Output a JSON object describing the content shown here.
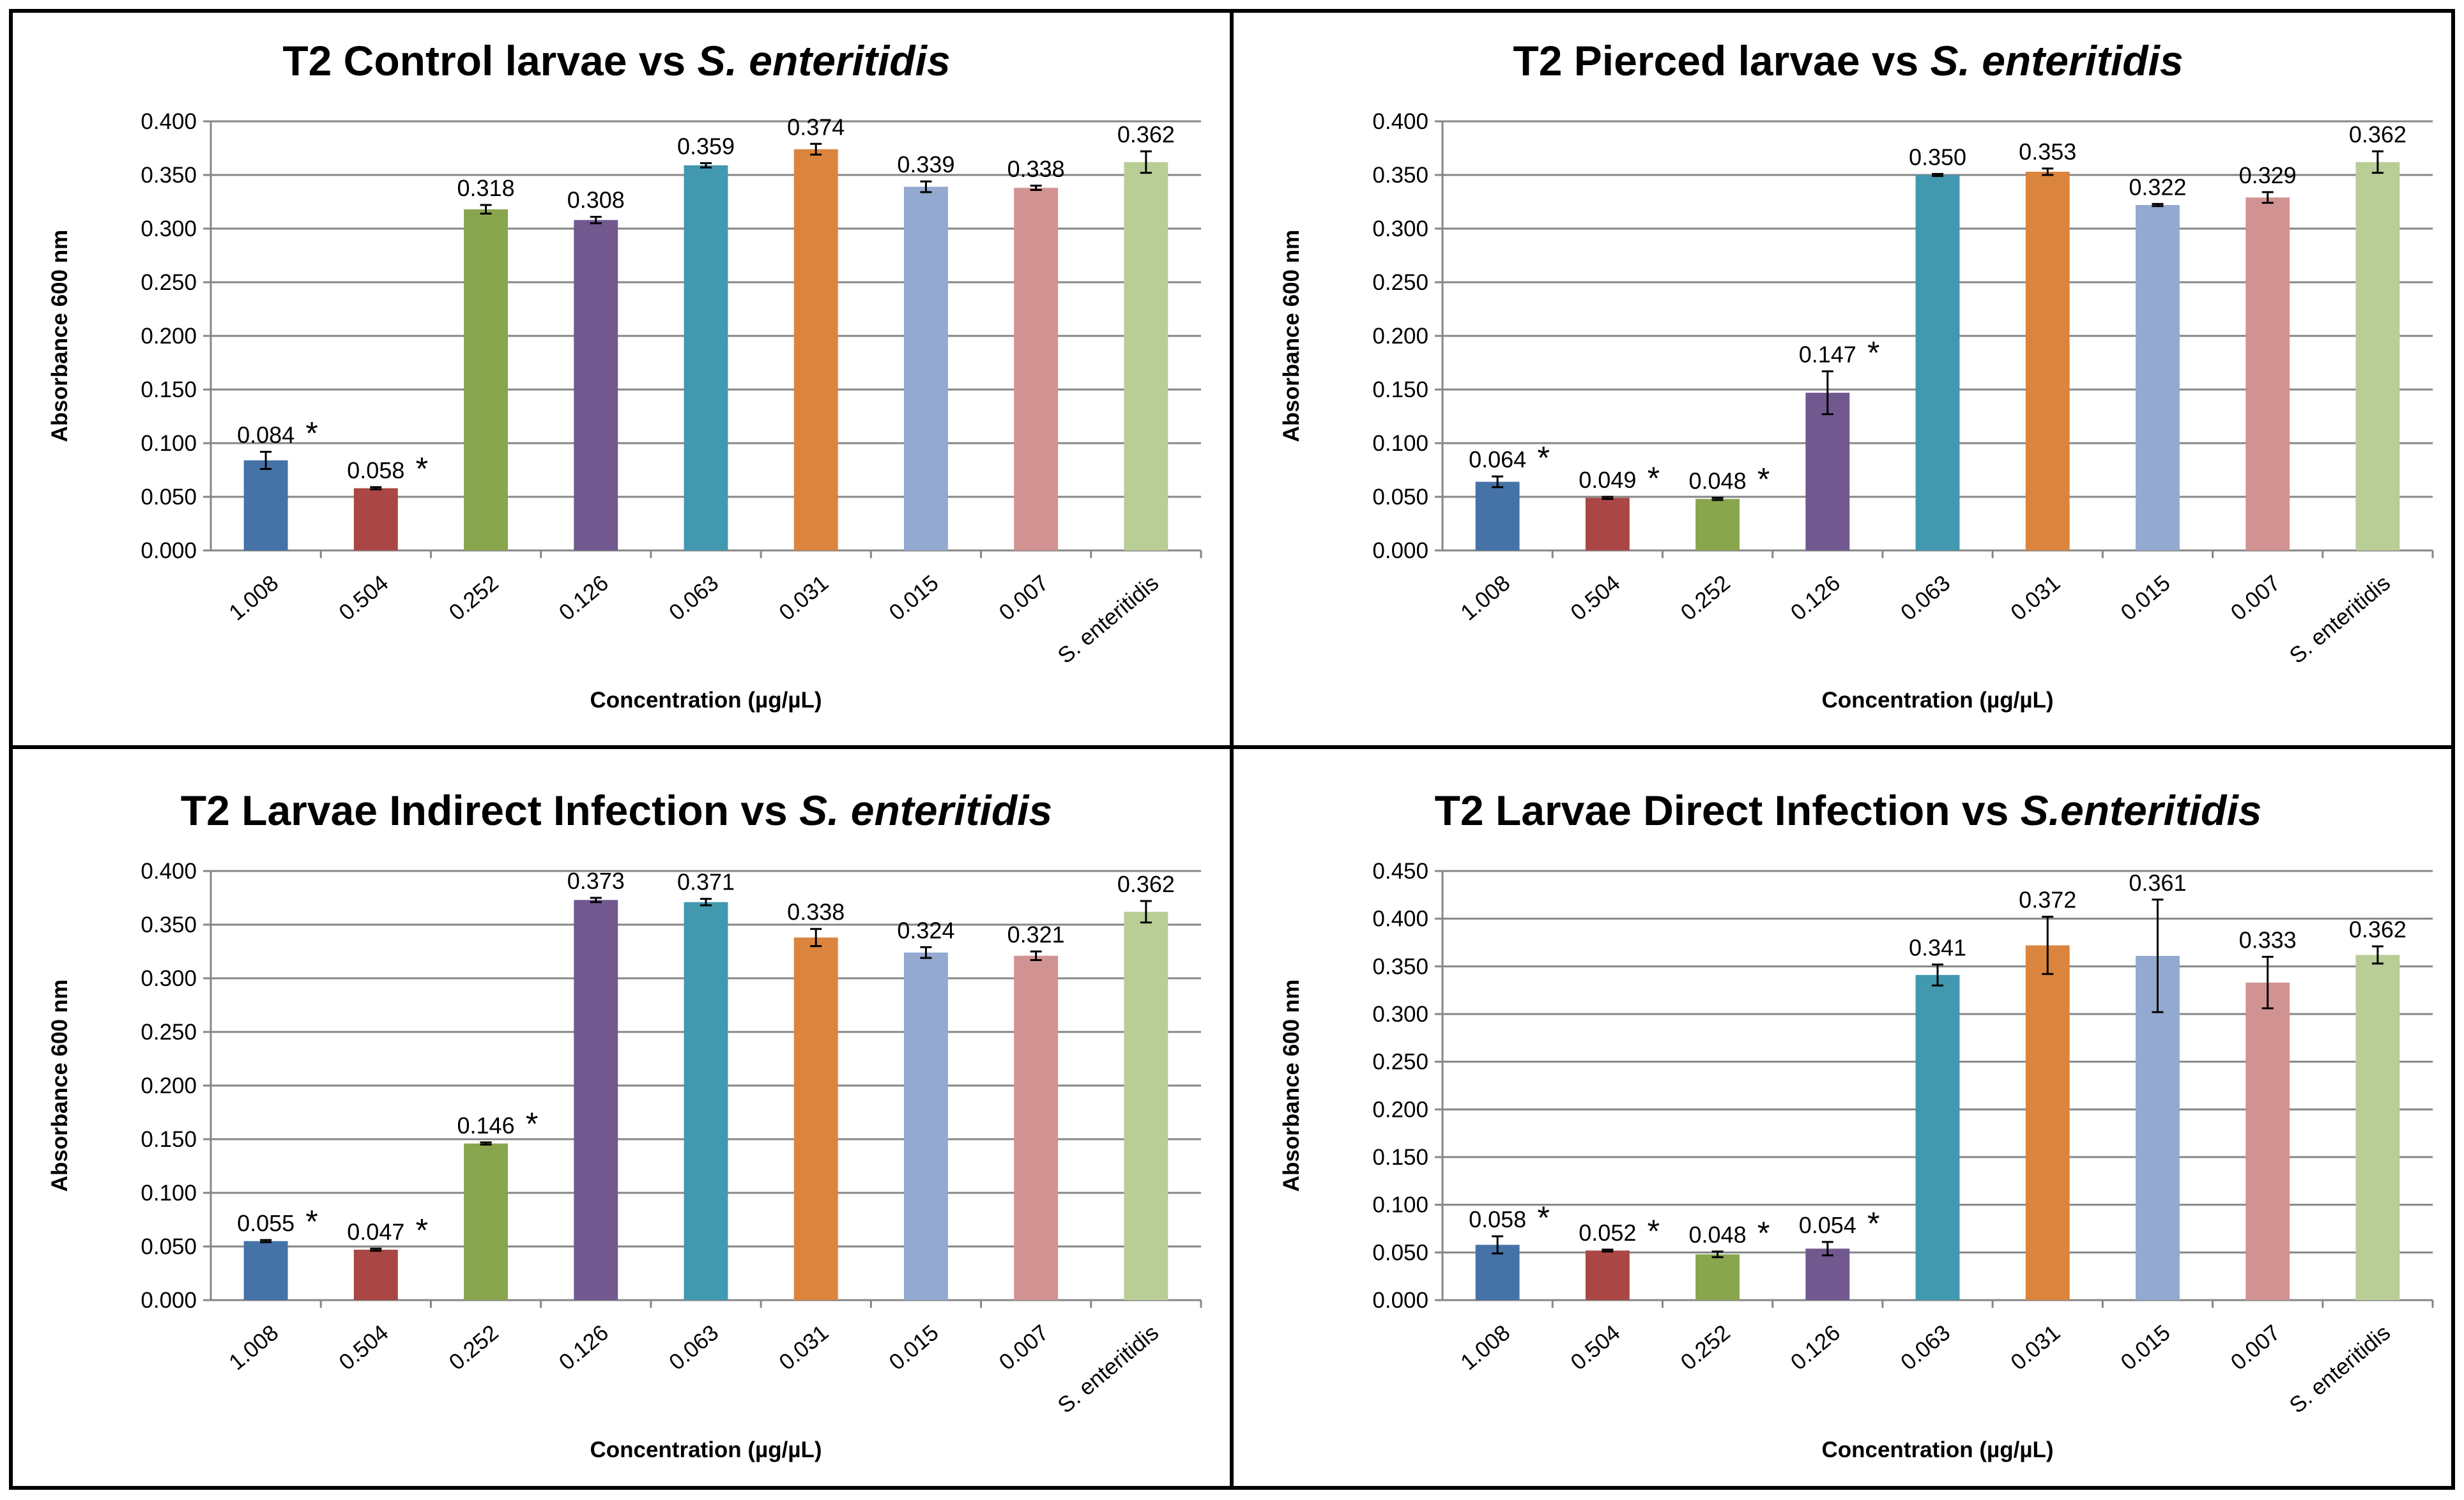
{
  "chart_data": [
    {
      "type": "bar",
      "title_prefix": "T2 Control larvae vs ",
      "title_italic": "S. enteritidis",
      "xlabel": "Concentration (µg/µL)",
      "ylabel": "Absorbance 600 nm",
      "ylim": [
        0,
        0.4
      ],
      "yticks": [
        "0.000",
        "0.050",
        "0.100",
        "0.150",
        "0.200",
        "0.250",
        "0.300",
        "0.350",
        "0.400"
      ],
      "grid": true,
      "categories": [
        "1.008",
        "0.504",
        "0.252",
        "0.126",
        "0.063",
        "0.031",
        "0.015",
        "0.007",
        "S. enteritidis"
      ],
      "values": [
        0.084,
        0.058,
        0.318,
        0.308,
        0.359,
        0.374,
        0.339,
        0.338,
        0.362
      ],
      "labels": [
        "0.084",
        "0.058",
        "0.318",
        "0.308",
        "0.359",
        "0.374",
        "0.339",
        "0.338",
        "0.362"
      ],
      "errors": [
        0.008,
        0.001,
        0.004,
        0.003,
        0.002,
        0.005,
        0.005,
        0.002,
        0.01
      ],
      "significant": [
        true,
        true,
        false,
        false,
        false,
        false,
        false,
        false,
        false
      ],
      "colors": [
        "#4572A7",
        "#AA4643",
        "#89A54E",
        "#71588F",
        "#4198AF",
        "#DB843D",
        "#93A9CF",
        "#D19392",
        "#B9CD96"
      ]
    },
    {
      "type": "bar",
      "title_prefix": "T2 Pierced larvae vs ",
      "title_italic": "S. enteritidis",
      "xlabel": "Concentration (µg/µL)",
      "ylabel": "Absorbance 600 nm",
      "ylim": [
        0,
        0.4
      ],
      "yticks": [
        "0.000",
        "0.050",
        "0.100",
        "0.150",
        "0.200",
        "0.250",
        "0.300",
        "0.350",
        "0.400"
      ],
      "grid": true,
      "categories": [
        "1.008",
        "0.504",
        "0.252",
        "0.126",
        "0.063",
        "0.031",
        "0.015",
        "0.007",
        "S. enteritidis"
      ],
      "values": [
        0.064,
        0.049,
        0.048,
        0.147,
        0.35,
        0.353,
        0.322,
        0.329,
        0.362
      ],
      "labels": [
        "0.064",
        "0.049",
        "0.048",
        "0.147",
        "0.350",
        "0.353",
        "0.322",
        "0.329",
        "0.362"
      ],
      "errors": [
        0.005,
        0.001,
        0.001,
        0.02,
        0.001,
        0.003,
        0.001,
        0.005,
        0.01
      ],
      "significant": [
        true,
        true,
        true,
        true,
        false,
        false,
        false,
        false,
        false
      ],
      "colors": [
        "#4572A7",
        "#AA4643",
        "#89A54E",
        "#71588F",
        "#4198AF",
        "#DB843D",
        "#93A9CF",
        "#D19392",
        "#B9CD96"
      ]
    },
    {
      "type": "bar",
      "title_prefix": "T2 Larvae Indirect Infection vs ",
      "title_italic": "S. enteritidis",
      "xlabel": "Concentration (µg/µL)",
      "ylabel": "Absorbance 600 nm",
      "ylim": [
        0,
        0.4
      ],
      "yticks": [
        "0.000",
        "0.050",
        "0.100",
        "0.150",
        "0.200",
        "0.250",
        "0.300",
        "0.350",
        "0.400"
      ],
      "grid": true,
      "categories": [
        "1.008",
        "0.504",
        "0.252",
        "0.126",
        "0.063",
        "0.031",
        "0.015",
        "0.007",
        "S. enteritidis"
      ],
      "values": [
        0.055,
        0.047,
        0.146,
        0.373,
        0.371,
        0.338,
        0.324,
        0.321,
        0.362
      ],
      "labels": [
        "0.055",
        "0.047",
        "0.146",
        "0.373",
        "0.371",
        "0.338",
        "0.324",
        "0.321",
        "0.362"
      ],
      "errors": [
        0.001,
        0.001,
        0.001,
        0.002,
        0.003,
        0.008,
        0.005,
        0.004,
        0.01
      ],
      "significant": [
        true,
        true,
        true,
        false,
        false,
        false,
        false,
        false,
        false
      ],
      "colors": [
        "#4572A7",
        "#AA4643",
        "#89A54E",
        "#71588F",
        "#4198AF",
        "#DB843D",
        "#93A9CF",
        "#D19392",
        "#B9CD96"
      ]
    },
    {
      "type": "bar",
      "title_prefix": "T2 Larvae Direct Infection vs ",
      "title_italic": "S.enteritidis",
      "xlabel": "Concentration (µg/µL)",
      "ylabel": "Absorbance 600 nm",
      "ylim": [
        0,
        0.45
      ],
      "yticks": [
        "0.000",
        "0.050",
        "0.100",
        "0.150",
        "0.200",
        "0.250",
        "0.300",
        "0.350",
        "0.400",
        "0.450"
      ],
      "grid": true,
      "categories": [
        "1.008",
        "0.504",
        "0.252",
        "0.126",
        "0.063",
        "0.031",
        "0.015",
        "0.007",
        "S. enteritidis"
      ],
      "values": [
        0.058,
        0.052,
        0.048,
        0.054,
        0.341,
        0.372,
        0.361,
        0.333,
        0.362
      ],
      "labels": [
        "0.058",
        "0.052",
        "0.048",
        "0.054",
        "0.341",
        "0.372",
        "0.361",
        "0.333",
        "0.362"
      ],
      "errors": [
        0.009,
        0.001,
        0.003,
        0.007,
        0.011,
        0.03,
        0.059,
        0.027,
        0.009
      ],
      "significant": [
        true,
        true,
        true,
        true,
        false,
        false,
        false,
        false,
        false
      ],
      "colors": [
        "#4572A7",
        "#AA4643",
        "#89A54E",
        "#71588F",
        "#4198AF",
        "#DB843D",
        "#93A9CF",
        "#D19392",
        "#B9CD96"
      ]
    }
  ],
  "significance_marker": "*"
}
